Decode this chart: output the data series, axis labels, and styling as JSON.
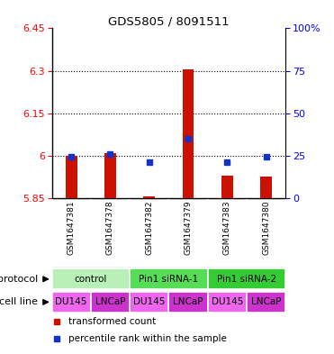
{
  "title": "GDS5805 / 8091511",
  "samples": [
    "GSM1647381",
    "GSM1647378",
    "GSM1647382",
    "GSM1647379",
    "GSM1647383",
    "GSM1647380"
  ],
  "red_values": [
    6.0,
    6.01,
    5.857,
    6.305,
    5.93,
    5.925
  ],
  "blue_values": [
    5.997,
    6.005,
    5.977,
    6.06,
    5.977,
    5.997
  ],
  "ylim_left": [
    5.85,
    6.45
  ],
  "ylim_right": [
    0,
    100
  ],
  "yticks_left": [
    5.85,
    6.0,
    6.15,
    6.3,
    6.45
  ],
  "yticks_right": [
    0,
    25,
    50,
    75,
    100
  ],
  "ytick_labels_left": [
    "5.85",
    "6",
    "6.15",
    "6.3",
    "6.45"
  ],
  "ytick_labels_right": [
    "0",
    "25",
    "50",
    "75",
    "100%"
  ],
  "grid_lines": [
    6.0,
    6.15,
    6.3
  ],
  "protocols": [
    {
      "label": "control",
      "span": [
        0,
        2
      ],
      "color": "#b8f0b8"
    },
    {
      "label": "Pin1 siRNA-1",
      "span": [
        2,
        4
      ],
      "color": "#55dd55"
    },
    {
      "label": "Pin1 siRNA-2",
      "span": [
        4,
        6
      ],
      "color": "#33cc33"
    }
  ],
  "cell_lines": [
    {
      "label": "DU145",
      "color": "#ee66ee"
    },
    {
      "label": "LNCaP",
      "color": "#cc33cc"
    },
    {
      "label": "DU145",
      "color": "#ee66ee"
    },
    {
      "label": "LNCaP",
      "color": "#cc33cc"
    },
    {
      "label": "DU145",
      "color": "#ee66ee"
    },
    {
      "label": "LNCaP",
      "color": "#cc33cc"
    }
  ],
  "bar_bottom": 5.85,
  "bar_color": "#cc1100",
  "dot_color": "#1133cc",
  "legend_red": "transformed count",
  "legend_blue": "percentile rank within the sample",
  "protocol_label": "protocol",
  "cell_line_label": "cell line",
  "gsm_bg_color": "#bbbbbb",
  "plot_bg": "#ffffff",
  "bar_width": 0.3,
  "dot_size": 5
}
